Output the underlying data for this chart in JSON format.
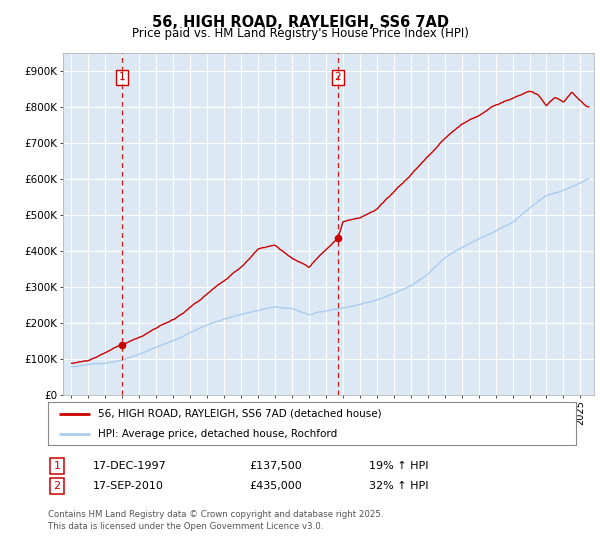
{
  "title": "56, HIGH ROAD, RAYLEIGH, SS6 7AD",
  "subtitle": "Price paid vs. HM Land Registry's House Price Index (HPI)",
  "ylabel_values": [
    "£0",
    "£100K",
    "£200K",
    "£300K",
    "£400K",
    "£500K",
    "£600K",
    "£700K",
    "£800K",
    "£900K"
  ],
  "yticks": [
    0,
    100000,
    200000,
    300000,
    400000,
    500000,
    600000,
    700000,
    800000,
    900000
  ],
  "ylim": [
    0,
    950000
  ],
  "xlim_start": 1994.5,
  "xlim_end": 2025.8,
  "background_color": "#dce9f5",
  "plot_bg_color": "#dce9f5",
  "grid_color": "#ffffff",
  "line1_color": "#cc0000",
  "line2_color": "#aaccee",
  "vline_color": "#cc0000",
  "marker1_x": 1997.96,
  "marker1_y": 137500,
  "marker2_x": 2010.71,
  "marker2_y": 435000,
  "legend_line1": "56, HIGH ROAD, RAYLEIGH, SS6 7AD (detached house)",
  "legend_line2": "HPI: Average price, detached house, Rochford",
  "table_row1": [
    "1",
    "17-DEC-1997",
    "£137,500",
    "19% ↑ HPI"
  ],
  "table_row2": [
    "2",
    "17-SEP-2010",
    "£435,000",
    "32% ↑ HPI"
  ],
  "footer": "Contains HM Land Registry data © Crown copyright and database right 2025.\nThis data is licensed under the Open Government Licence v3.0.",
  "xticks": [
    1995,
    1996,
    1997,
    1998,
    1999,
    2000,
    2001,
    2002,
    2003,
    2004,
    2005,
    2006,
    2007,
    2008,
    2009,
    2010,
    2011,
    2012,
    2013,
    2014,
    2015,
    2016,
    2017,
    2018,
    2019,
    2020,
    2021,
    2022,
    2023,
    2024,
    2025
  ],
  "hpi_knots_x": [
    1995,
    1997,
    1998,
    1999,
    2001,
    2003,
    2005,
    2007,
    2008,
    2009,
    2010,
    2011,
    2012,
    2013,
    2014,
    2015,
    2016,
    2017,
    2018,
    2019,
    2020,
    2021,
    2022,
    2023,
    2024,
    2025.4
  ],
  "hpi_knots_y": [
    78000,
    90000,
    100000,
    115000,
    155000,
    200000,
    230000,
    255000,
    250000,
    235000,
    245000,
    255000,
    265000,
    278000,
    295000,
    315000,
    345000,
    390000,
    420000,
    445000,
    465000,
    490000,
    530000,
    565000,
    580000,
    610000
  ],
  "prop_knots_x": [
    1995,
    1996,
    1997,
    1997.96,
    1999,
    2001,
    2003,
    2005,
    2006,
    2007,
    2008,
    2009,
    2010.71,
    2011,
    2012,
    2013,
    2014,
    2015,
    2016,
    2017,
    2018,
    2019,
    2020,
    2021,
    2022,
    2022.5,
    2023,
    2023.5,
    2024,
    2024.5,
    2025.4
  ],
  "prop_knots_y": [
    88000,
    95000,
    115000,
    137500,
    160000,
    210000,
    285000,
    355000,
    405000,
    415000,
    380000,
    350000,
    435000,
    480000,
    490000,
    510000,
    555000,
    600000,
    650000,
    700000,
    740000,
    760000,
    790000,
    810000,
    830000,
    820000,
    790000,
    815000,
    800000,
    830000,
    790000
  ]
}
